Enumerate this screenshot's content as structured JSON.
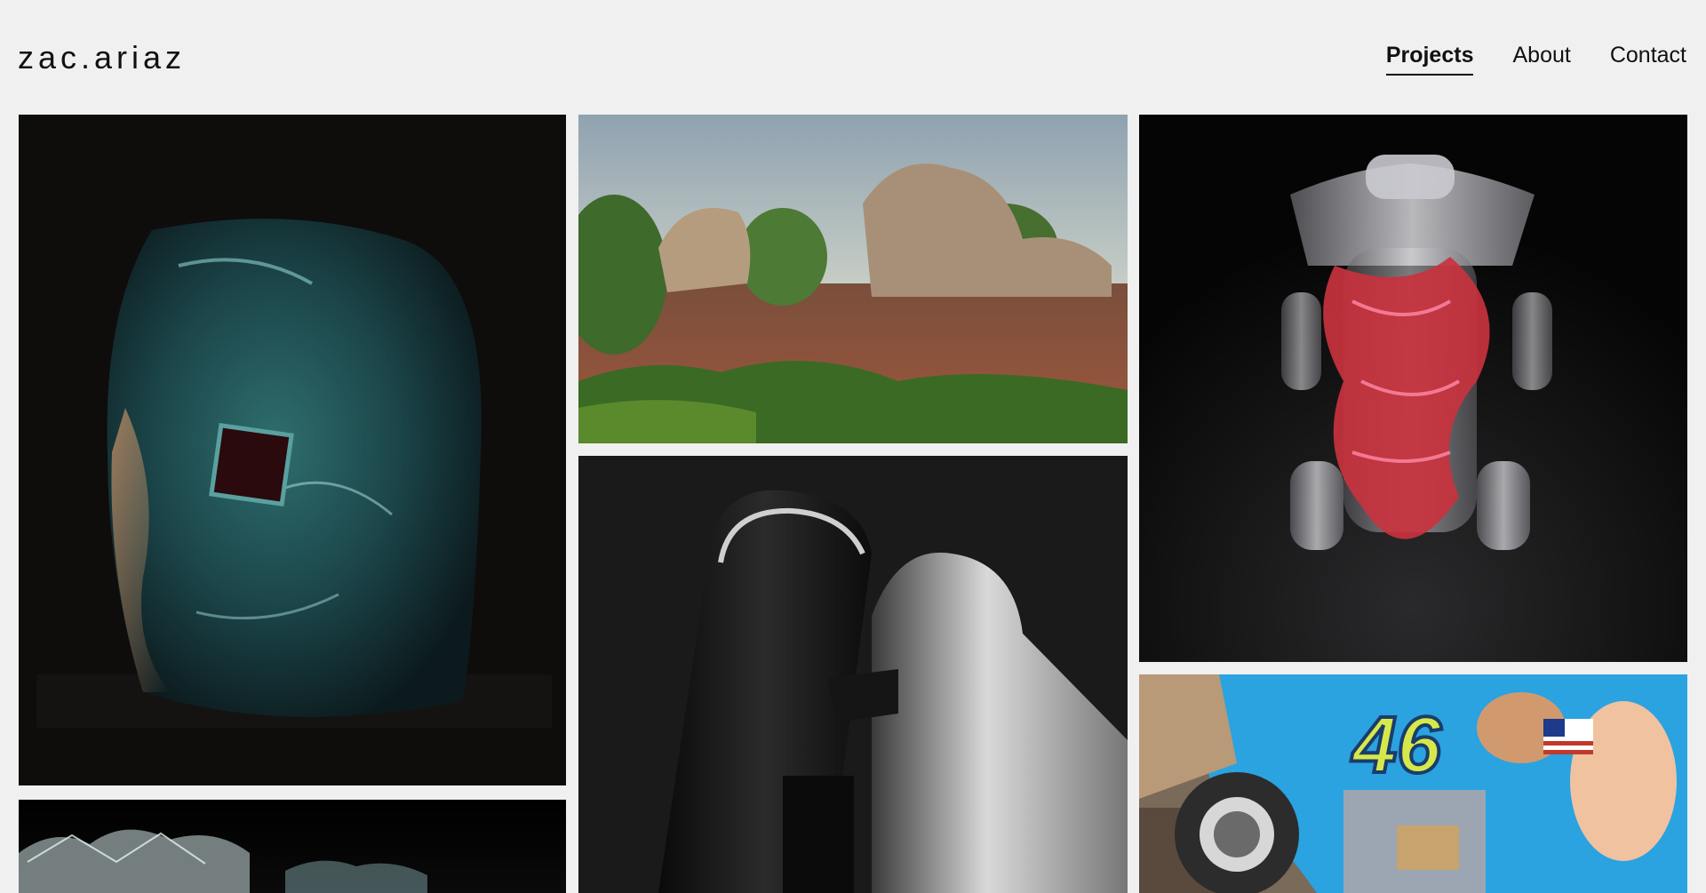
{
  "site": {
    "logo": "zac.ariaz"
  },
  "nav": {
    "items": [
      {
        "label": "Projects",
        "active": true
      },
      {
        "label": "About",
        "active": false
      },
      {
        "label": "Contact",
        "active": false
      }
    ]
  },
  "gallery": {
    "tiles": [
      {
        "name": "liquid-teal-sculpture",
        "subject": "teal liquid cube sculpture"
      },
      {
        "name": "flooded-landscape",
        "subject": "flooded landscape with rock formations"
      },
      {
        "name": "glass-robot-coral",
        "subject": "glass figure with red coral"
      },
      {
        "name": "crystal-glass-strip",
        "subject": "crystalline glass detail"
      },
      {
        "name": "metal-cylinders",
        "subject": "black metal cylinders"
      },
      {
        "name": "collage-46",
        "subject": "collage with number 46",
        "badge_text": "46"
      }
    ]
  }
}
